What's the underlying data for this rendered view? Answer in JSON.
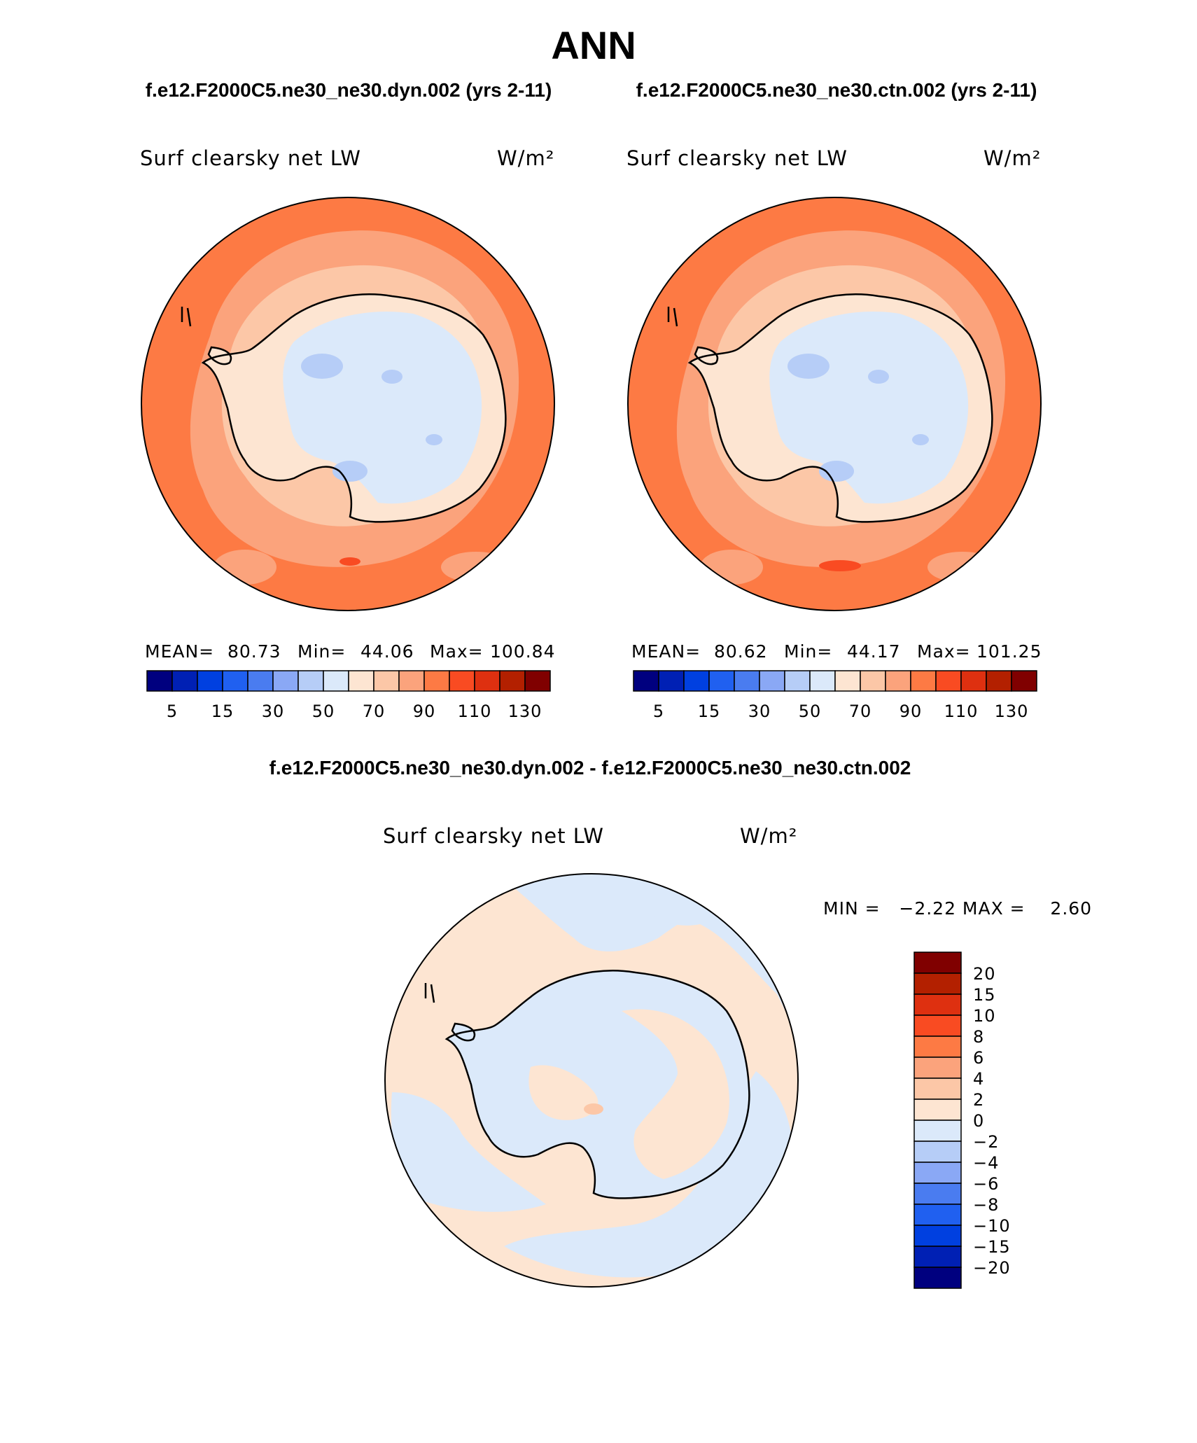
{
  "header": {
    "title": "ANN",
    "case1": "f.e12.F2000C5.ne30_ne30.dyn.002 (yrs 2-11)",
    "case2": "f.e12.F2000C5.ne30_ne30.ctn.002 (yrs 2-11)",
    "diff_title": "f.e12.F2000C5.ne30_ne30.dyn.002 - f.e12.F2000C5.ne30_ne30.ctn.002"
  },
  "variable": "Surf clearsky net LW",
  "units": "W/m²",
  "colors": {
    "abs_scale": [
      "#00007f",
      "#0020b4",
      "#0040e0",
      "#2060f0",
      "#4a7cf0",
      "#8aa8f5",
      "#b6cdf7",
      "#dbe9fa",
      "#fde5d2",
      "#fcc7a7",
      "#fba37c",
      "#fd7a44",
      "#f94b22",
      "#de3010",
      "#b32000",
      "#800000"
    ],
    "diff_scale": [
      "#00007f",
      "#0020b4",
      "#0040e0",
      "#2060f0",
      "#4a7cf0",
      "#8aa8f5",
      "#b6cdf7",
      "#dbe9fa",
      "#fde5d2",
      "#fcc7a7",
      "#fba37c",
      "#fd7a44",
      "#f94b22",
      "#de3010",
      "#b32000",
      "#800000"
    ],
    "land_outline": "#000000"
  },
  "maps": [
    {
      "stats": {
        "mean_label": "MEAN=",
        "mean": "80.73",
        "min_label": "Min=",
        "min": "44.06",
        "max_label": "Max=",
        "max": "100.84"
      },
      "colorbar_ticks": [
        "5",
        "15",
        "30",
        "50",
        "70",
        "90",
        "110",
        "130"
      ]
    },
    {
      "stats": {
        "mean_label": "MEAN=",
        "mean": "80.62",
        "min_label": "Min=",
        "min": "44.17",
        "max_label": "Max=",
        "max": "101.25"
      },
      "colorbar_ticks": [
        "5",
        "15",
        "30",
        "50",
        "70",
        "90",
        "110",
        "130"
      ]
    }
  ],
  "diff_map": {
    "stats": "MIN =   −2.22 MAX =    2.60",
    "colorbar_ticks": [
      "20",
      "15",
      "10",
      "8",
      "6",
      "4",
      "2",
      "0",
      "−2",
      "−4",
      "−6",
      "−8",
      "−10",
      "−15",
      "−20"
    ]
  }
}
